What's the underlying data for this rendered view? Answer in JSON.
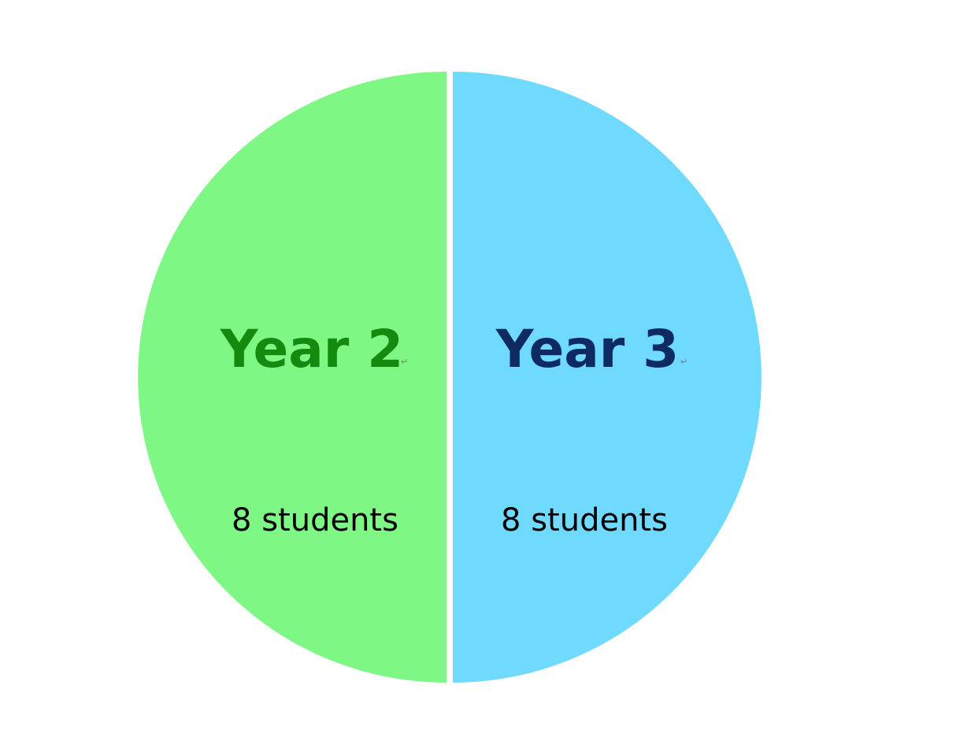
{
  "chart_data": {
    "type": "pie",
    "title": "",
    "unit": "students",
    "slices": [
      {
        "label": "Year 2",
        "value": 8,
        "value_text": "8 students",
        "fill_color": "#7ff785",
        "label_color": "#148a0f"
      },
      {
        "label": "Year 3",
        "value": 8,
        "value_text": "8 students",
        "fill_color": "#70d9fe",
        "label_color": "#0d2a63"
      }
    ],
    "legend": "none",
    "separator_color": "#ffffff"
  }
}
